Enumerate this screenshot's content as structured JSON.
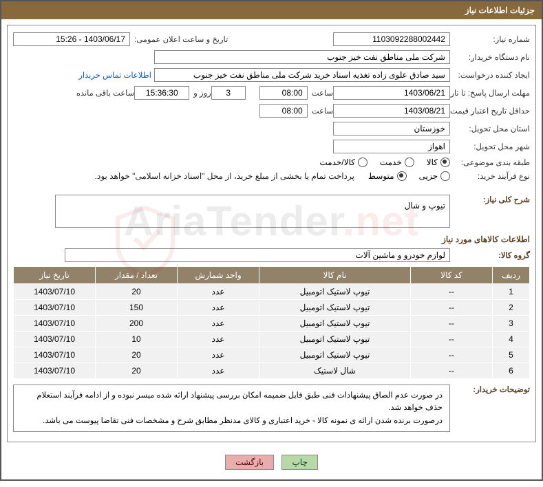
{
  "header": {
    "title": "جزئیات اطلاعات نیاز"
  },
  "fields": {
    "need_no_label": "شماره نیاز:",
    "need_no": "1103092288002442",
    "announce_dt_label": "تاریخ و ساعت اعلان عمومی:",
    "announce_dt": "1403/06/17 - 15:26",
    "buyer_label": "نام دستگاه خریدار:",
    "buyer": "شرکت ملی مناطق نفت خیز جنوب",
    "creator_label": "ایجاد کننده درخواست:",
    "creator": "سید صادق علوی زاده  تغذیه اسناد خرید  شرکت ملی مناطق نفت خیز جنوب",
    "contact_link": "اطلاعات تماس خریدار",
    "deadline_label": "مهلت ارسال پاسخ: تا تاریخ:",
    "deadline_date": "1403/06/21",
    "time_label": "ساعت",
    "deadline_time": "08:00",
    "days_val": "3",
    "days_and": "روز و",
    "remain_time": "15:36:30",
    "remain_label": "ساعت باقی مانده",
    "validity_label": "حداقل تاریخ اعتبار قیمت: تا تاریخ:",
    "validity_date": "1403/08/21",
    "validity_time": "08:00",
    "province_label": "استان محل تحویل:",
    "province": "خوزستان",
    "city_label": "شهر محل تحویل:",
    "city": "اهواز",
    "category_label": "طبقه بندی موضوعی:",
    "cat_goods": "کالا",
    "cat_service": "خدمت",
    "cat_both": "کالا/خدمت",
    "proc_type_label": "نوع فرآیند خرید:",
    "proc_partial": "جزیی",
    "proc_medium": "متوسط",
    "proc_note": "پرداخت تمام یا بخشی از مبلغ خرید، از محل \"اسناد خزانه اسلامی\" خواهد بود.",
    "desc_label": "شرح کلی نیاز:",
    "desc_text": "تیوپ و شال",
    "goods_title": "اطلاعات کالاهای مورد نیاز",
    "group_label": "گروه کالا:",
    "group_value": "لوازم خودرو و ماشین آلات",
    "explain_label": "توضیحات خریدار:",
    "explain_text1": "در صورت عدم الصاق پیشنهادات فنی طبق فایل ضمیمه امکان بررسی پیشنهاد ارائه شده میسر نبوده و از ادامه فرآیند استعلام حذف خواهد شد.",
    "explain_text2": "درصورت برنده شدن ارائه ی نمونه کالا - خرید اعتباری و کالای مدنظر مطابق شرح و مشخصات فنی تقاضا پیوست می باشد."
  },
  "table": {
    "headers": {
      "row": "ردیف",
      "code": "کد کالا",
      "name": "نام کالا",
      "unit": "واحد شمارش",
      "qty": "تعداد / مقدار",
      "date": "تاریخ نیاز"
    },
    "rows": [
      {
        "row": "1",
        "code": "--",
        "name": "تیوپ لاستیک اتومبیل",
        "unit": "عدد",
        "qty": "20",
        "date": "1403/07/10"
      },
      {
        "row": "2",
        "code": "--",
        "name": "تیوپ لاستیک اتومبیل",
        "unit": "عدد",
        "qty": "150",
        "date": "1403/07/10"
      },
      {
        "row": "3",
        "code": "--",
        "name": "تیوپ لاستیک اتومبیل",
        "unit": "عدد",
        "qty": "200",
        "date": "1403/07/10"
      },
      {
        "row": "4",
        "code": "--",
        "name": "تیوپ لاستیک اتومبیل",
        "unit": "عدد",
        "qty": "10",
        "date": "1403/07/10"
      },
      {
        "row": "5",
        "code": "--",
        "name": "تیوپ لاستیک اتومبیل",
        "unit": "عدد",
        "qty": "20",
        "date": "1403/07/10"
      },
      {
        "row": "6",
        "code": "--",
        "name": "شال لاستیک",
        "unit": "عدد",
        "qty": "20",
        "date": "1403/07/10"
      }
    ]
  },
  "buttons": {
    "back": "بازگشت",
    "print": "چاپ"
  },
  "watermark": {
    "text1": "AriaTender",
    "text2": ".net"
  },
  "styling": {
    "header_bg": "#87693e",
    "table_header_bg": "#918269",
    "table_row_bg": "#f1f1f1",
    "btn_back_bg": "#e9adad",
    "btn_print_bg": "#b8d8a7",
    "link_color": "#0b5bd3",
    "border_color": "#888",
    "watermark_opacity": 0.07
  }
}
